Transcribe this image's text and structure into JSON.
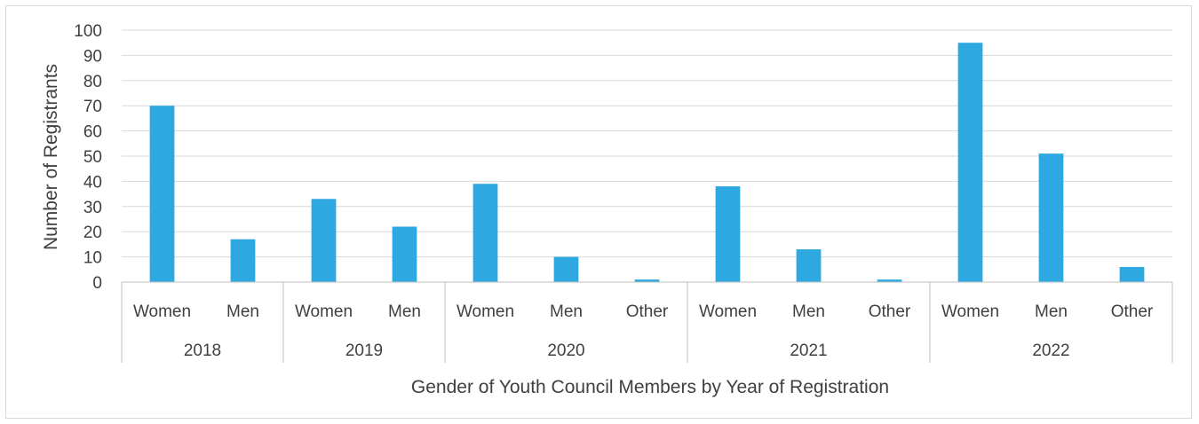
{
  "chart_data": {
    "type": "bar",
    "title": "",
    "xlabel": "Gender of Youth Council Members by Year of Registration",
    "ylabel": "Number of Registrants",
    "ylim": [
      0,
      100
    ],
    "yticks": [
      0,
      10,
      20,
      30,
      40,
      50,
      60,
      70,
      80,
      90,
      100
    ],
    "grid": true,
    "legend": "none",
    "bar_color": "#2ea8e1",
    "groups": [
      {
        "label": "2018",
        "categories": [
          "Women",
          "Men"
        ],
        "values": [
          70,
          17
        ]
      },
      {
        "label": "2019",
        "categories": [
          "Women",
          "Men"
        ],
        "values": [
          33,
          22
        ]
      },
      {
        "label": "2020",
        "categories": [
          "Women",
          "Men",
          "Other"
        ],
        "values": [
          39,
          10,
          1
        ]
      },
      {
        "label": "2021",
        "categories": [
          "Women",
          "Men",
          "Other"
        ],
        "values": [
          38,
          13,
          1
        ]
      },
      {
        "label": "2022",
        "categories": [
          "Women",
          "Men",
          "Other"
        ],
        "values": [
          95,
          51,
          6
        ]
      }
    ]
  }
}
